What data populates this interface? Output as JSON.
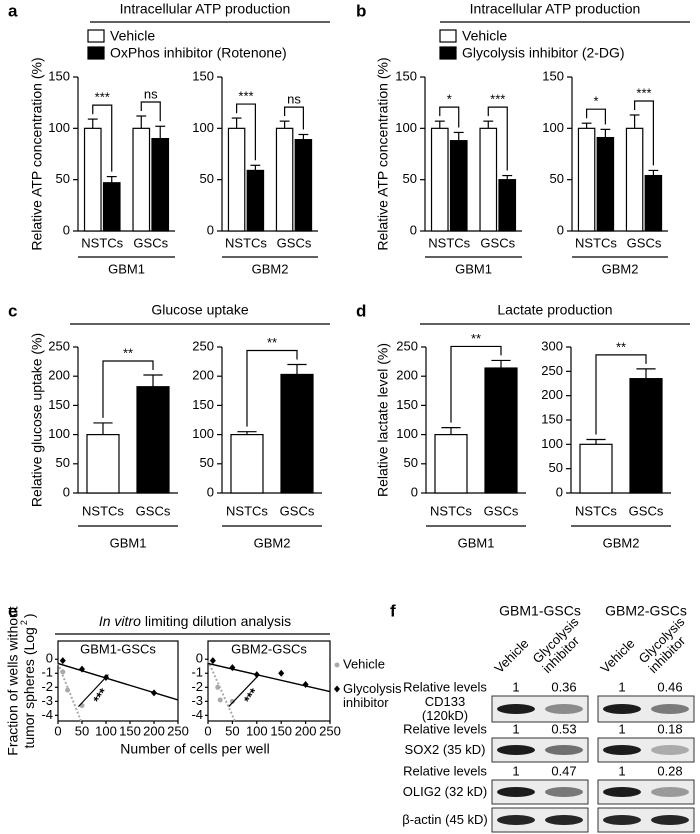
{
  "chart_data": [
    {
      "panel": "a",
      "title": "Intracellular ATP production",
      "legend": [
        {
          "name": "Vehicle",
          "color": "#ffffff"
        },
        {
          "name": "OxPhos inhibitor (Rotenone)",
          "color": "#000000"
        }
      ],
      "y_label": "Relative ATP concentration (%)",
      "charts": [
        {
          "type": "bar",
          "group": "GBM1",
          "categories": [
            "NSTCs",
            "GSCs"
          ],
          "series": [
            {
              "values": [
                100,
                100
              ],
              "errors": [
                9,
                12
              ]
            },
            {
              "values": [
                47,
                90
              ],
              "errors": [
                6,
                12
              ]
            }
          ],
          "significance": [
            "***",
            "ns"
          ],
          "ylim": [
            0,
            150
          ],
          "yticks": [
            0,
            50,
            100,
            150
          ]
        },
        {
          "type": "bar",
          "group": "GBM2",
          "categories": [
            "NSTCs",
            "GSCs"
          ],
          "series": [
            {
              "values": [
                100,
                100
              ],
              "errors": [
                10,
                7
              ]
            },
            {
              "values": [
                59,
                89
              ],
              "errors": [
                5,
                5
              ]
            }
          ],
          "significance": [
            "***",
            "ns"
          ],
          "ylim": [
            0,
            150
          ],
          "yticks": [
            0,
            50,
            100,
            150
          ]
        }
      ]
    },
    {
      "panel": "b",
      "title": "Intracellular ATP production",
      "legend": [
        {
          "name": "Vehicle",
          "color": "#ffffff"
        },
        {
          "name": "Glycolysis inhibitor (2-DG)",
          "color": "#000000"
        }
      ],
      "y_label": "Relative ATP concentration (%)",
      "charts": [
        {
          "type": "bar",
          "group": "GBM1",
          "categories": [
            "NSTCs",
            "GSCs"
          ],
          "series": [
            {
              "values": [
                100,
                100
              ],
              "errors": [
                7,
                7
              ]
            },
            {
              "values": [
                88,
                50
              ],
              "errors": [
                8,
                4
              ]
            }
          ],
          "significance": [
            "*",
            "***"
          ],
          "ylim": [
            0,
            150
          ],
          "yticks": [
            0,
            50,
            100,
            150
          ]
        },
        {
          "type": "bar",
          "group": "GBM2",
          "categories": [
            "NSTCs",
            "GSCs"
          ],
          "series": [
            {
              "values": [
                100,
                100
              ],
              "errors": [
                5,
                13
              ]
            },
            {
              "values": [
                91,
                54
              ],
              "errors": [
                8,
                5
              ]
            }
          ],
          "significance": [
            "*",
            "***"
          ],
          "ylim": [
            0,
            150
          ],
          "yticks": [
            0,
            50,
            100,
            150
          ]
        }
      ]
    },
    {
      "panel": "c",
      "title": "Glucose uptake",
      "y_label": "Relative glucose uptake (%)",
      "charts": [
        {
          "type": "bar",
          "group": "GBM1",
          "categories": [
            "NSTCs",
            "GSCs"
          ],
          "colors": [
            "#ffffff",
            "#000000"
          ],
          "values": [
            100,
            182
          ],
          "errors": [
            20,
            20
          ],
          "significance": "**",
          "ylim": [
            0,
            250
          ],
          "yticks": [
            0,
            50,
            100,
            150,
            200,
            250
          ]
        },
        {
          "type": "bar",
          "group": "GBM2",
          "categories": [
            "NSTCs",
            "GSCs"
          ],
          "colors": [
            "#ffffff",
            "#000000"
          ],
          "values": [
            100,
            203
          ],
          "errors": [
            5,
            17
          ],
          "significance": "**",
          "ylim": [
            0,
            250
          ],
          "yticks": [
            0,
            50,
            100,
            150,
            200,
            250
          ]
        }
      ]
    },
    {
      "panel": "d",
      "title": "Lactate production",
      "y_label": "Relative lactate level (%)",
      "charts": [
        {
          "type": "bar",
          "group": "GBM1",
          "categories": [
            "NSTCs",
            "GSCs"
          ],
          "colors": [
            "#ffffff",
            "#000000"
          ],
          "values": [
            100,
            214
          ],
          "errors": [
            12,
            13
          ],
          "significance": "**",
          "ylim": [
            0,
            250
          ],
          "yticks": [
            0,
            50,
            100,
            150,
            200,
            250
          ]
        },
        {
          "type": "bar",
          "group": "GBM2",
          "categories": [
            "NSTCs",
            "GSCs"
          ],
          "colors": [
            "#ffffff",
            "#000000"
          ],
          "values": [
            100,
            235
          ],
          "errors": [
            10,
            20
          ],
          "significance": "**",
          "ylim": [
            0,
            300
          ],
          "yticks": [
            0,
            50,
            100,
            150,
            200,
            250,
            300
          ]
        }
      ]
    },
    {
      "panel": "e",
      "title_italic": "In vitro",
      "title": "limiting dilution analysis",
      "y_label": [
        "Fraction of wells without",
        "tumor spheres (Log"
      ],
      "y_label_sup": "2",
      "y_label_end": ")",
      "x_label": "Number of cells per well",
      "annotation": "***",
      "legend": [
        {
          "name": "Vehicle",
          "color": "#aaaaaa",
          "marker": "circle"
        },
        {
          "name": "Glycolysis inhibitor",
          "color": "#000000",
          "marker": "diamond"
        }
      ],
      "charts": [
        {
          "type": "scatter",
          "title": "GBM1-GSCs",
          "xlim": [
            0,
            250
          ],
          "xticks": [
            0,
            50,
            100,
            150,
            200,
            250
          ],
          "ylim": [
            -4.4,
            1.3
          ],
          "yticks": [
            0,
            -1,
            -2,
            -3,
            -4
          ],
          "series": [
            {
              "x": [
                10,
                20,
                50
              ],
              "values": [
                -0.9,
                -2.2,
                -3.3
              ]
            },
            {
              "x": [
                10,
                50,
                100,
                200
              ],
              "values": [
                -0.1,
                -0.7,
                -1.3,
                -2.4
              ]
            }
          ],
          "fits": [
            {
              "x": [
                0,
                48
              ],
              "values": [
                -0.3,
                -4.4
              ]
            },
            {
              "x": [
                0,
                250
              ],
              "values": [
                -0.3,
                -2.9
              ]
            }
          ]
        },
        {
          "type": "scatter",
          "title": "GBM2-GSCs",
          "xlim": [
            0,
            250
          ],
          "xticks": [
            0,
            50,
            100,
            150,
            200,
            250
          ],
          "ylim": [
            -4.4,
            1.3
          ],
          "yticks": [
            0,
            -1,
            -2,
            -3,
            -4
          ],
          "series": [
            {
              "x": [
                20,
                25,
                50
              ],
              "values": [
                -2.0,
                -2.9,
                -3.0
              ]
            },
            {
              "x": [
                10,
                50,
                100,
                150,
                200
              ],
              "values": [
                -0.1,
                -0.6,
                -1.1,
                -1.0,
                -1.8
              ]
            }
          ],
          "fits": [
            {
              "x": [
                0,
                55
              ],
              "values": [
                -0.1,
                -4.4
              ]
            },
            {
              "x": [
                0,
                250
              ],
              "values": [
                -0.3,
                -2.3
              ]
            }
          ]
        }
      ]
    }
  ],
  "blot": {
    "panel": "f",
    "groups": [
      "GBM1-GSCs",
      "GBM2-GSCs"
    ],
    "lanes": [
      "Vehicle",
      "Glycolysis inhibitor"
    ],
    "rows": [
      {
        "level_label": "Relative levels",
        "levels": [
          1,
          0.36,
          1,
          0.46
        ],
        "label": "CD133 (120kD)"
      },
      {
        "level_label": "Relative levels",
        "levels": [
          1,
          0.53,
          1,
          0.18
        ],
        "label": "SOX2 (35 kD)"
      },
      {
        "level_label": "Relative levels",
        "levels": [
          1,
          0.47,
          1,
          0.28
        ],
        "label": "OLIG2 (32 kD)"
      },
      {
        "label": "β-actin (45 kD)"
      }
    ]
  }
}
